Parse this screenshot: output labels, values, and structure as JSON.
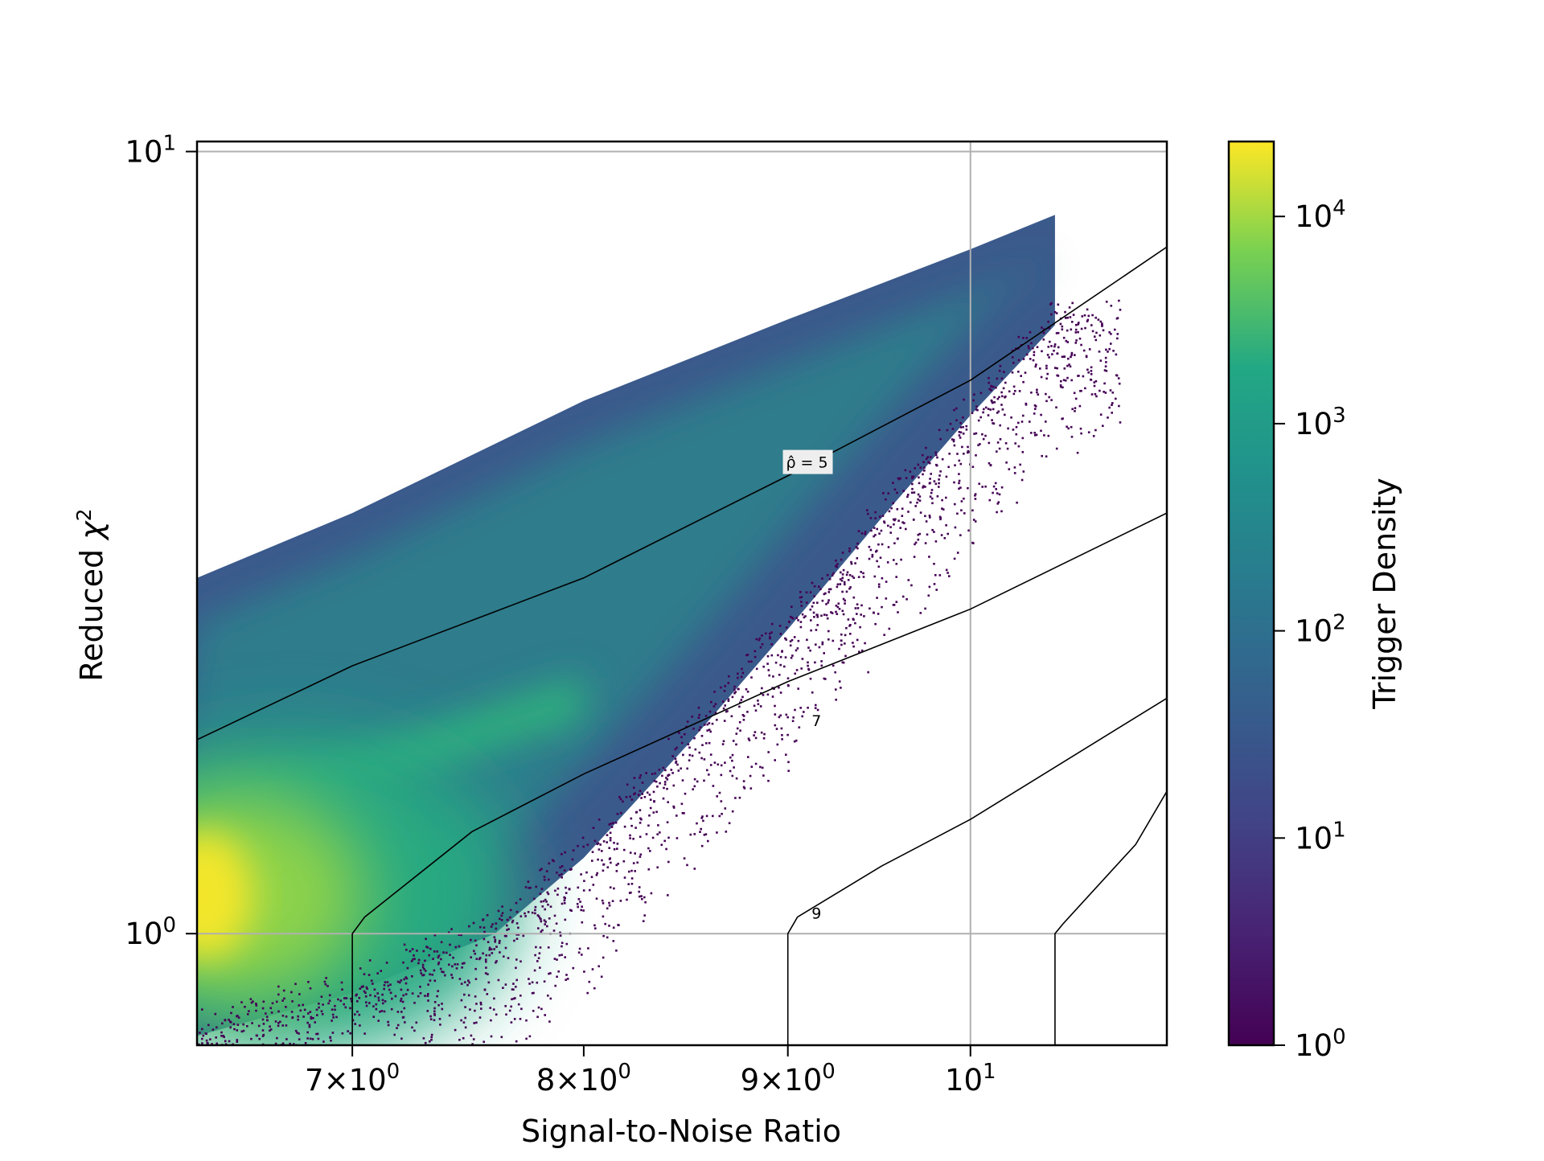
{
  "chart_data": {
    "type": "heatmap",
    "subtype": "hexbin density with contour overlay",
    "title": "",
    "xlabel": "Signal-to-Noise Ratio",
    "ylabel_prefix": "Reduced ",
    "ylabel_symbol": "χ",
    "ylabel_exponent": "2",
    "x_scale": "log",
    "y_scale": "log",
    "xlim": [
      6.4,
      11.2
    ],
    "ylim": [
      0.72,
      10.3
    ],
    "x_ticks": [
      {
        "value": 7,
        "mantissa": "7×10",
        "exponent": "0"
      },
      {
        "value": 8,
        "mantissa": "8×10",
        "exponent": "0"
      },
      {
        "value": 9,
        "mantissa": "9×10",
        "exponent": "0"
      },
      {
        "value": 10,
        "mantissa": "10",
        "exponent": "1"
      }
    ],
    "y_ticks": [
      {
        "value": 1,
        "mantissa": "10",
        "exponent": "0"
      },
      {
        "value": 10,
        "mantissa": "10",
        "exponent": "1"
      }
    ],
    "grid": true,
    "colorbar": {
      "label": "Trigger Density",
      "scale": "log",
      "colormap": "viridis",
      "range": [
        1,
        23000
      ],
      "ticks": [
        {
          "value": 1,
          "mantissa": "10",
          "exponent": "0"
        },
        {
          "value": 10,
          "mantissa": "10",
          "exponent": "1"
        },
        {
          "value": 100,
          "mantissa": "10",
          "exponent": "2"
        },
        {
          "value": 1000,
          "mantissa": "10",
          "exponent": "3"
        },
        {
          "value": 10000,
          "mantissa": "10",
          "exponent": "4"
        }
      ]
    },
    "density_region": {
      "upper_edge": [
        [
          6.4,
          2.85
        ],
        [
          7.0,
          3.45
        ],
        [
          8.0,
          4.8
        ],
        [
          9.0,
          6.1
        ],
        [
          10.0,
          7.5
        ],
        [
          10.5,
          8.3
        ]
      ],
      "lower_edge": [
        [
          6.4,
          0.74
        ],
        [
          7.0,
          0.84
        ],
        [
          7.6,
          1.0
        ],
        [
          8.0,
          1.25
        ],
        [
          8.5,
          1.75
        ],
        [
          9.0,
          2.45
        ],
        [
          9.5,
          3.4
        ],
        [
          10.0,
          4.6
        ],
        [
          10.5,
          6.0
        ]
      ],
      "peak_density_point": [
        6.4,
        1.12
      ],
      "bright_band": [
        [
          6.4,
          1.38
        ],
        [
          7.0,
          1.6
        ],
        [
          7.5,
          1.8
        ],
        [
          8.0,
          2.0
        ]
      ]
    },
    "contours": {
      "symbol": "ρ̂",
      "lines": [
        {
          "value": 5,
          "label": "ρ̂ = 5",
          "points": [
            [
              6.4,
              1.77
            ],
            [
              7.0,
              2.2
            ],
            [
              8.0,
              2.85
            ],
            [
              9.0,
              3.85
            ],
            [
              10.0,
              5.1
            ],
            [
              11.2,
              7.55
            ]
          ],
          "label_at": [
            9.1,
            4.0
          ]
        },
        {
          "value": 7,
          "label": "7",
          "points": [
            [
              7.0,
              1.0
            ],
            [
              7.05,
              1.05
            ],
            [
              7.5,
              1.35
            ],
            [
              8.0,
              1.6
            ],
            [
              9.0,
              2.1
            ],
            [
              10.0,
              2.6
            ],
            [
              11.2,
              3.45
            ]
          ],
          "label_at": [
            9.15,
            1.87
          ]
        },
        {
          "value": 9,
          "label": "9",
          "points": [
            [
              9.0,
              1.0
            ],
            [
              9.05,
              1.05
            ],
            [
              9.5,
              1.22
            ],
            [
              10.0,
              1.4
            ],
            [
              11.2,
              2.0
            ]
          ],
          "label_at": [
            9.15,
            1.06
          ]
        },
        {
          "value": 11,
          "label": "",
          "points": [
            [
              10.5,
              1.0
            ],
            [
              10.55,
              1.03
            ],
            [
              11.0,
              1.3
            ],
            [
              11.2,
              1.52
            ]
          ],
          "label_at": null
        }
      ]
    }
  }
}
